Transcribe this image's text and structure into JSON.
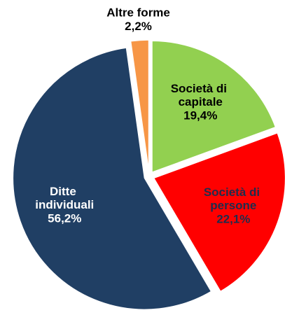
{
  "chart_data": {
    "type": "pie",
    "categories": [
      "Società di capitale",
      "Società di persone",
      "Ditte individuali",
      "Altre forme"
    ],
    "values": [
      19.4,
      22.1,
      56.2,
      2.2
    ],
    "value_labels": [
      "19,4%",
      "22,1%",
      "56,2%",
      "2,2%"
    ],
    "colors": [
      "#92d050",
      "#ff0000",
      "#203f64",
      "#f79646"
    ],
    "label_colors": [
      "#000000",
      "#1f2d4d",
      "#ffffff",
      "#000000"
    ]
  }
}
